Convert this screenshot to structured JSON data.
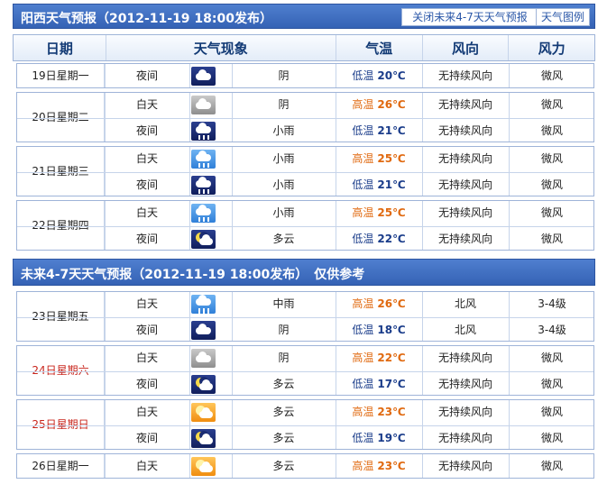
{
  "section1": {
    "title": "阳西天气预报（2012-11-19 18:00发布）",
    "close_btn": "关闭未来4-7天天气预报",
    "legend_btn": "天气图例"
  },
  "header": {
    "date": "日期",
    "weather": "天气现象",
    "temp": "气温",
    "wind_dir": "风向",
    "wind_force": "风力"
  },
  "section2": {
    "title": "未来4-7天天气预报（2012-11-19 18:00发布）　仅供参考"
  },
  "days": [
    {
      "date": "19日星期一",
      "weekend": false,
      "periods": [
        {
          "time": "夜间",
          "icon": "cloudy-night-icon",
          "weather": "阴",
          "temp_label": "低温",
          "temp": "20℃",
          "wind_dir": "无持续风向",
          "wind_force": "微风"
        }
      ]
    },
    {
      "date": "20日星期二",
      "weekend": false,
      "periods": [
        {
          "time": "白天",
          "icon": "overcast-icon",
          "weather": "阴",
          "temp_label": "高温",
          "temp": "26℃",
          "wind_dir": "无持续风向",
          "wind_force": "微风"
        },
        {
          "time": "夜间",
          "icon": "light-rain-night-icon",
          "weather": "小雨",
          "temp_label": "低温",
          "temp": "21℃",
          "wind_dir": "无持续风向",
          "wind_force": "微风"
        }
      ]
    },
    {
      "date": "21日星期三",
      "weekend": false,
      "periods": [
        {
          "time": "白天",
          "icon": "light-rain-icon",
          "weather": "小雨",
          "temp_label": "高温",
          "temp": "25℃",
          "wind_dir": "无持续风向",
          "wind_force": "微风"
        },
        {
          "time": "夜间",
          "icon": "light-rain-night-icon",
          "weather": "小雨",
          "temp_label": "低温",
          "temp": "21℃",
          "wind_dir": "无持续风向",
          "wind_force": "微风"
        }
      ]
    },
    {
      "date": "22日星期四",
      "weekend": false,
      "periods": [
        {
          "time": "白天",
          "icon": "light-rain-icon",
          "weather": "小雨",
          "temp_label": "高温",
          "temp": "25℃",
          "wind_dir": "无持续风向",
          "wind_force": "微风"
        },
        {
          "time": "夜间",
          "icon": "partly-cloudy-night-icon",
          "weather": "多云",
          "temp_label": "低温",
          "temp": "22℃",
          "wind_dir": "无持续风向",
          "wind_force": "微风"
        }
      ]
    },
    {
      "date": "23日星期五",
      "weekend": false,
      "periods": [
        {
          "time": "白天",
          "icon": "moderate-rain-icon",
          "weather": "中雨",
          "temp_label": "高温",
          "temp": "26℃",
          "wind_dir": "北风",
          "wind_force": "3-4级"
        },
        {
          "time": "夜间",
          "icon": "cloudy-night-icon",
          "weather": "阴",
          "temp_label": "低温",
          "temp": "18℃",
          "wind_dir": "北风",
          "wind_force": "3-4级"
        }
      ]
    },
    {
      "date": "24日星期六",
      "weekend": true,
      "periods": [
        {
          "time": "白天",
          "icon": "overcast-icon",
          "weather": "阴",
          "temp_label": "高温",
          "temp": "22℃",
          "wind_dir": "无持续风向",
          "wind_force": "微风"
        },
        {
          "time": "夜间",
          "icon": "partly-cloudy-night-icon",
          "weather": "多云",
          "temp_label": "低温",
          "temp": "17℃",
          "wind_dir": "无持续风向",
          "wind_force": "微风"
        }
      ]
    },
    {
      "date": "25日星期日",
      "weekend": true,
      "periods": [
        {
          "time": "白天",
          "icon": "partly-cloudy-day-icon",
          "weather": "多云",
          "temp_label": "高温",
          "temp": "23℃",
          "wind_dir": "无持续风向",
          "wind_force": "微风"
        },
        {
          "time": "夜间",
          "icon": "partly-cloudy-night-icon",
          "weather": "多云",
          "temp_label": "低温",
          "temp": "19℃",
          "wind_dir": "无持续风向",
          "wind_force": "微风"
        }
      ]
    },
    {
      "date": "26日星期一",
      "weekend": false,
      "periods": [
        {
          "time": "白天",
          "icon": "partly-cloudy-day-icon",
          "weather": "多云",
          "temp_label": "高温",
          "temp": "23℃",
          "wind_dir": "无持续风向",
          "wind_force": "微风"
        }
      ]
    }
  ]
}
